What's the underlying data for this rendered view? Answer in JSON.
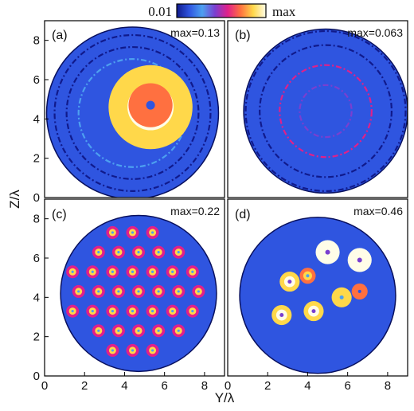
{
  "chart_data": {
    "type": "heatmap",
    "colorbar": {
      "min_label": "0.01",
      "max_label": "max",
      "colors": [
        "#101a8c",
        "#2f55e0",
        "#4da0f0",
        "#7a3fd0",
        "#e0208a",
        "#ff7040",
        "#ffd84a",
        "#fffde8"
      ]
    },
    "xlabel": "Y/λ",
    "ylabel": "Z/λ",
    "xlim": [
      0,
      9
    ],
    "ylim": [
      0,
      9
    ],
    "xticks": [
      "0",
      "2",
      "4",
      "6",
      "8"
    ],
    "yticks": [
      "0",
      "2",
      "4",
      "6",
      "8"
    ],
    "panels": [
      {
        "label": "(a)",
        "max": "max=0.13",
        "features": [
          {
            "shape": "disk",
            "x": 4.4,
            "y": 4.3,
            "r": 4.3,
            "intensity": 0.12
          },
          {
            "shape": "ring",
            "x": 4.4,
            "y": 4.3,
            "r": 3.9,
            "intensity": 0.0
          },
          {
            "shape": "ring",
            "x": 4.4,
            "y": 4.3,
            "r": 3.3,
            "intensity": 0.0
          },
          {
            "shape": "ring",
            "x": 4.4,
            "y": 4.3,
            "r": 2.7,
            "intensity": 0.35
          },
          {
            "shape": "blob",
            "x": 5.3,
            "y": 4.6,
            "r": 2.1,
            "intensity": 0.9
          },
          {
            "shape": "blob",
            "x": 5.3,
            "y": 4.7,
            "r": 1.1,
            "intensity": 0.65
          }
        ]
      },
      {
        "label": "(b)",
        "max": "max=0.063",
        "features": [
          {
            "shape": "disk",
            "x": 4.9,
            "y": 4.4,
            "r": 4.1,
            "intensity": 0.08
          },
          {
            "shape": "ring",
            "x": 4.9,
            "y": 4.4,
            "r": 4.0,
            "intensity": 0.0
          },
          {
            "shape": "ring",
            "x": 4.9,
            "y": 4.4,
            "r": 3.3,
            "intensity": 0.0
          },
          {
            "shape": "ring",
            "x": 4.9,
            "y": 4.4,
            "r": 2.3,
            "intensity": 0.5
          },
          {
            "shape": "ring",
            "x": 4.9,
            "y": 4.4,
            "r": 1.3,
            "intensity": 0.45
          }
        ]
      },
      {
        "label": "(c)",
        "max": "max=0.22",
        "features": [
          {
            "shape": "disk",
            "x": 4.7,
            "y": 4.2,
            "r": 3.9,
            "intensity": 0.12
          },
          {
            "shape": "spots",
            "x": 4.5,
            "y": 4.3,
            "r": 3.0,
            "intensity": 0.9
          }
        ]
      },
      {
        "label": "(d)",
        "max": "max=0.46",
        "features": [
          {
            "shape": "disk",
            "x": 4.5,
            "y": 4.1,
            "r": 3.9,
            "intensity": 0.12
          },
          {
            "shape": "blob",
            "x": 5.0,
            "y": 6.3,
            "r": 0.6,
            "intensity": 0.95
          },
          {
            "shape": "blob",
            "x": 6.6,
            "y": 5.9,
            "r": 0.6,
            "intensity": 0.95
          },
          {
            "shape": "blob",
            "x": 3.1,
            "y": 4.8,
            "r": 0.5,
            "intensity": 0.85
          },
          {
            "shape": "blob",
            "x": 4.3,
            "y": 3.3,
            "r": 0.5,
            "intensity": 0.9
          },
          {
            "shape": "blob",
            "x": 2.7,
            "y": 3.1,
            "r": 0.5,
            "intensity": 0.9
          },
          {
            "shape": "blob",
            "x": 5.7,
            "y": 4.0,
            "r": 0.5,
            "intensity": 0.8
          },
          {
            "shape": "blob",
            "x": 4.0,
            "y": 5.1,
            "r": 0.4,
            "intensity": 0.7
          },
          {
            "shape": "blob",
            "x": 6.6,
            "y": 4.3,
            "r": 0.4,
            "intensity": 0.65
          }
        ]
      }
    ]
  }
}
